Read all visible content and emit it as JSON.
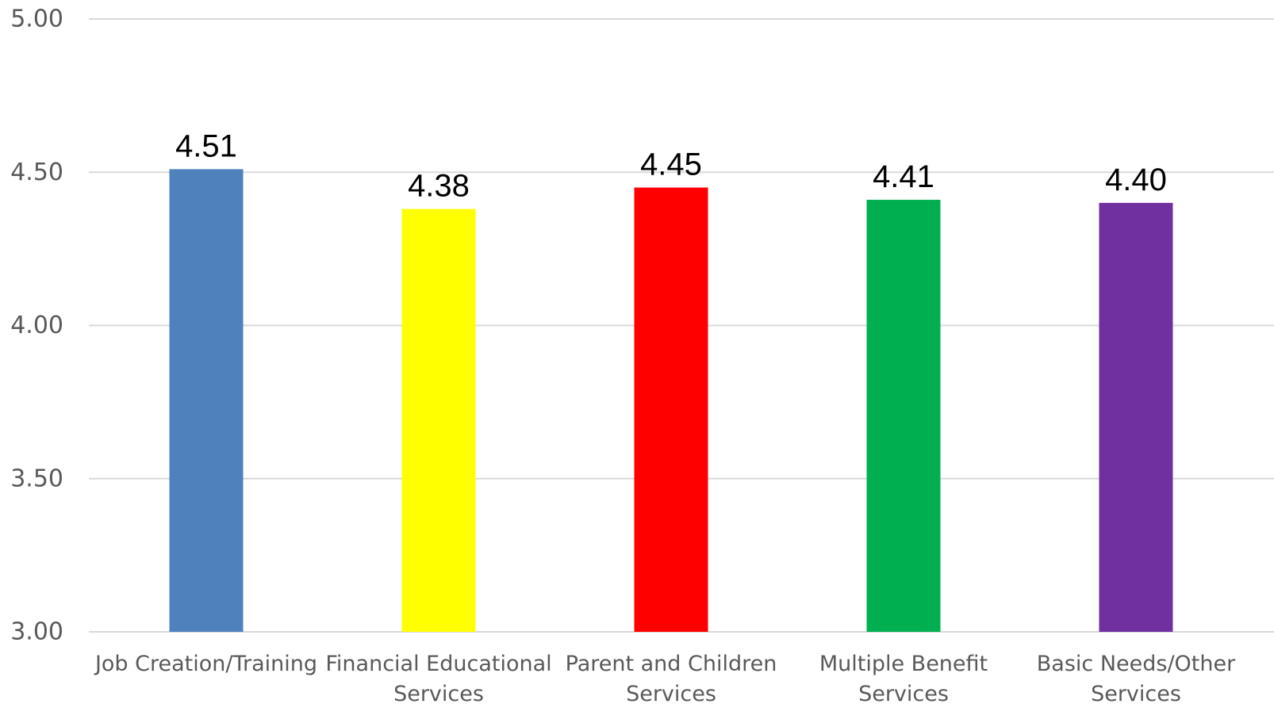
{
  "chart_data": {
    "type": "bar",
    "categories": [
      [
        "Job Creation/Training"
      ],
      [
        "Financial Educational",
        "Services"
      ],
      [
        "Parent and Children",
        "Services"
      ],
      [
        "Multiple Benefit",
        "Services"
      ],
      [
        "Basic Needs/Other",
        "Services"
      ]
    ],
    "values": [
      4.51,
      4.38,
      4.45,
      4.41,
      4.4
    ],
    "data_labels": [
      "4.51",
      "4.38",
      "4.45",
      "4.41",
      "4.40"
    ],
    "colors": [
      "#4f81bd",
      "#ffff00",
      "#ff0000",
      "#00b050",
      "#7030a0"
    ],
    "ylim": [
      3.0,
      5.0
    ],
    "yticks": [
      3.0,
      3.5,
      4.0,
      4.5,
      5.0
    ],
    "ytick_labels": [
      "3.00",
      "3.50",
      "4.00",
      "4.50",
      "5.00"
    ],
    "grid": true,
    "legend": "none",
    "title": "",
    "xlabel": "",
    "ylabel": ""
  }
}
